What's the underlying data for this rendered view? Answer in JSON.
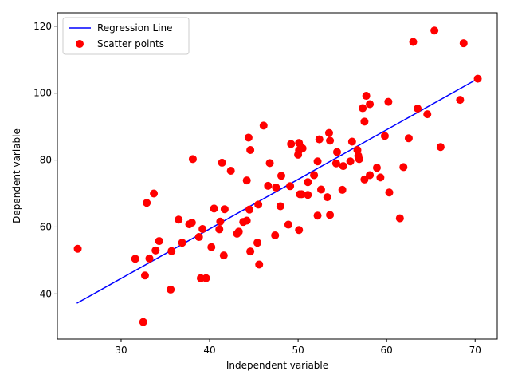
{
  "chart_data": {
    "type": "scatter",
    "xlabel": "Independent variable",
    "ylabel": "Dependent variable",
    "xlim": [
      22.8,
      72.5
    ],
    "ylim": [
      26.5,
      124
    ],
    "xticks": [
      30,
      40,
      50,
      60,
      70
    ],
    "yticks": [
      40,
      60,
      80,
      100,
      120
    ],
    "xtick_labels": [
      "30",
      "40",
      "50",
      "60",
      "70"
    ],
    "ytick_labels": [
      "40",
      "60",
      "80",
      "100",
      "120"
    ],
    "grid": false,
    "legend_position": "top-left",
    "colors": {
      "line": "#0000ff",
      "points": "#ff0000"
    },
    "series": [
      {
        "name": "Regression Line",
        "type": "line",
        "points": [
          [
            25.0,
            37.2
          ],
          [
            70.3,
            104.3
          ]
        ]
      },
      {
        "name": "Scatter points",
        "type": "scatter",
        "points": [
          [
            25.1,
            53.5
          ],
          [
            31.6,
            50.5
          ],
          [
            32.5,
            31.6
          ],
          [
            32.7,
            45.5
          ],
          [
            32.9,
            67.2
          ],
          [
            33.2,
            50.6
          ],
          [
            33.7,
            70.0
          ],
          [
            33.9,
            53.0
          ],
          [
            34.3,
            55.8
          ],
          [
            35.6,
            41.3
          ],
          [
            35.7,
            52.8
          ],
          [
            36.5,
            62.2
          ],
          [
            36.9,
            55.3
          ],
          [
            37.7,
            60.8
          ],
          [
            38.0,
            61.3
          ],
          [
            38.1,
            80.3
          ],
          [
            38.8,
            57.0
          ],
          [
            39.0,
            44.7
          ],
          [
            39.2,
            59.4
          ],
          [
            39.6,
            44.7
          ],
          [
            40.2,
            54.0
          ],
          [
            40.5,
            65.5
          ],
          [
            41.1,
            59.3
          ],
          [
            41.2,
            61.6
          ],
          [
            41.4,
            79.2
          ],
          [
            41.6,
            51.5
          ],
          [
            41.7,
            65.3
          ],
          [
            42.4,
            76.8
          ],
          [
            43.1,
            58.0
          ],
          [
            43.3,
            58.6
          ],
          [
            43.8,
            61.5
          ],
          [
            44.2,
            61.9
          ],
          [
            44.2,
            73.9
          ],
          [
            44.4,
            86.7
          ],
          [
            44.5,
            65.2
          ],
          [
            44.6,
            52.7
          ],
          [
            44.6,
            83.0
          ],
          [
            45.4,
            55.3
          ],
          [
            45.5,
            66.7
          ],
          [
            45.6,
            48.8
          ],
          [
            46.1,
            90.3
          ],
          [
            46.6,
            72.3
          ],
          [
            46.8,
            79.1
          ],
          [
            47.4,
            57.5
          ],
          [
            47.5,
            71.8
          ],
          [
            48.0,
            66.2
          ],
          [
            48.1,
            75.3
          ],
          [
            48.9,
            60.7
          ],
          [
            49.1,
            72.2
          ],
          [
            49.2,
            84.8
          ],
          [
            50.0,
            81.6
          ],
          [
            50.1,
            85.1
          ],
          [
            50.1,
            82.9
          ],
          [
            50.1,
            59.1
          ],
          [
            50.2,
            69.8
          ],
          [
            50.4,
            69.8
          ],
          [
            50.5,
            83.5
          ],
          [
            51.1,
            69.6
          ],
          [
            51.1,
            73.4
          ],
          [
            51.8,
            75.5
          ],
          [
            52.2,
            63.4
          ],
          [
            52.2,
            79.6
          ],
          [
            52.4,
            86.2
          ],
          [
            52.6,
            71.2
          ],
          [
            53.3,
            68.9
          ],
          [
            53.5,
            88.1
          ],
          [
            53.6,
            85.8
          ],
          [
            53.6,
            63.6
          ],
          [
            54.3,
            79.0
          ],
          [
            54.4,
            82.4
          ],
          [
            55.0,
            71.1
          ],
          [
            55.1,
            78.2
          ],
          [
            55.9,
            79.6
          ],
          [
            56.1,
            85.5
          ],
          [
            56.7,
            83.0
          ],
          [
            56.8,
            81.3
          ],
          [
            56.9,
            80.3
          ],
          [
            57.3,
            95.5
          ],
          [
            57.5,
            91.5
          ],
          [
            57.5,
            74.2
          ],
          [
            57.7,
            99.2
          ],
          [
            58.1,
            96.7
          ],
          [
            58.1,
            75.5
          ],
          [
            58.9,
            77.7
          ],
          [
            59.3,
            74.8
          ],
          [
            59.8,
            87.2
          ],
          [
            60.2,
            97.4
          ],
          [
            60.3,
            70.3
          ],
          [
            61.5,
            62.6
          ],
          [
            61.9,
            77.9
          ],
          [
            62.5,
            86.5
          ],
          [
            63.0,
            115.3
          ],
          [
            63.5,
            95.4
          ],
          [
            64.6,
            93.7
          ],
          [
            65.4,
            118.7
          ],
          [
            66.1,
            83.9
          ],
          [
            68.3,
            98.0
          ],
          [
            68.7,
            114.9
          ],
          [
            70.3,
            104.3
          ]
        ]
      }
    ]
  }
}
